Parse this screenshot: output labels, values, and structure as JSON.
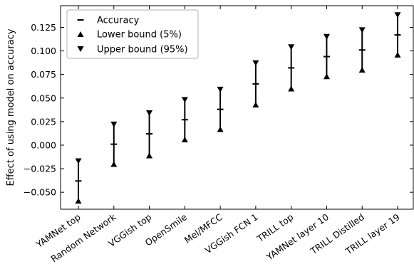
{
  "chart_data": {
    "type": "scatter",
    "ylabel": "Effect of using model on accuracy",
    "xlabel": "",
    "title": "",
    "categories": [
      "YAMNet top",
      "Random Network",
      "VGGish top",
      "OpenSmile",
      "Mel/MFCC",
      "VGGish FCN 1",
      "TRILL top",
      "YAMNet layer 10",
      "TRILL Distilled",
      "TRILL layer 19"
    ],
    "ylim": [
      -0.068,
      0.148
    ],
    "yticks": [
      -0.05,
      -0.025,
      0.0,
      0.025,
      0.05,
      0.075,
      0.1,
      0.125
    ],
    "ytick_labels": [
      "−0.050",
      "−0.025",
      "0.000",
      "0.025",
      "0.050",
      "0.075",
      "0.100",
      "0.125"
    ],
    "series": [
      {
        "name": "Accuracy",
        "marker": "dash",
        "values": [
          -0.038,
          0.001,
          0.012,
          0.027,
          0.038,
          0.065,
          0.082,
          0.094,
          0.101,
          0.117
        ]
      },
      {
        "name": "Lower bound (5%)",
        "marker": "triangle-up",
        "values": [
          -0.059,
          -0.02,
          -0.011,
          0.006,
          0.017,
          0.043,
          0.06,
          0.073,
          0.08,
          0.096
        ]
      },
      {
        "name": "Upper bound (95%)",
        "marker": "triangle-down",
        "values": [
          -0.017,
          0.022,
          0.034,
          0.048,
          0.059,
          0.087,
          0.104,
          0.115,
          0.122,
          0.138
        ]
      }
    ],
    "legend_position": "top-left",
    "grid": false
  }
}
